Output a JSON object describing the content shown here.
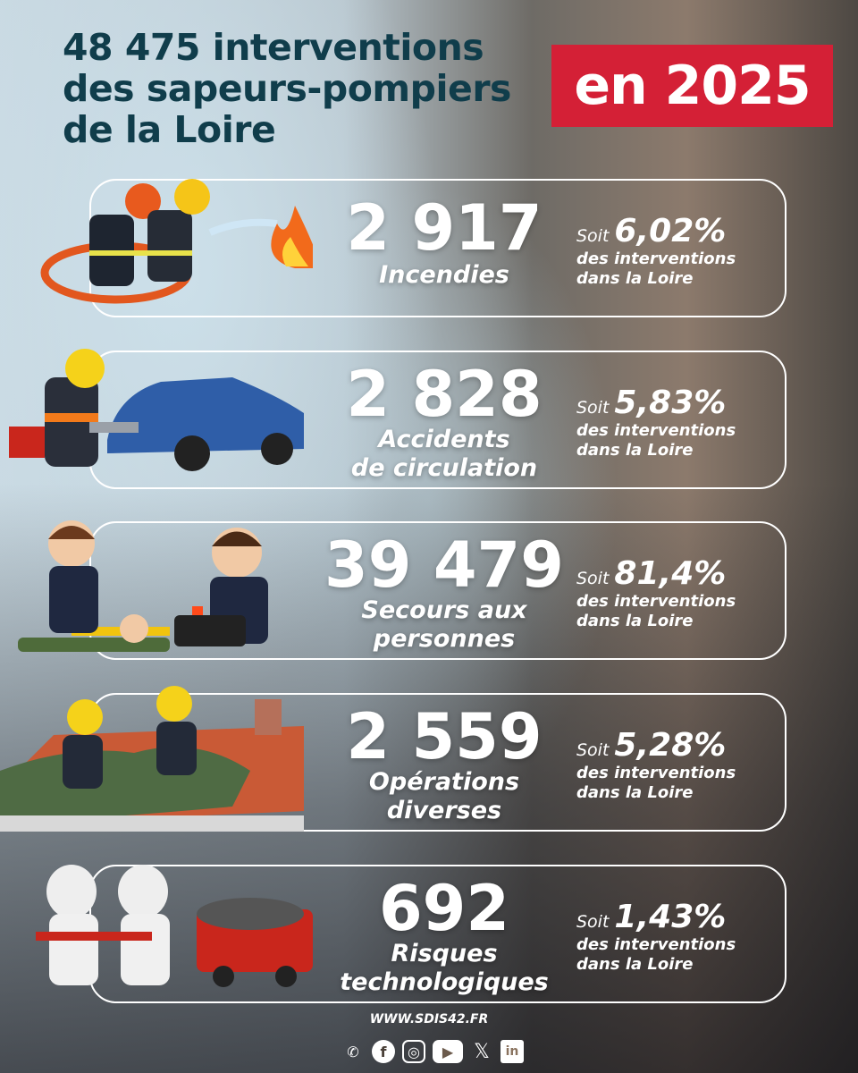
{
  "header": {
    "title_lines": [
      "48 475 interventions",
      "des sapeurs-pompiers",
      "de la Loire"
    ],
    "badge": "en 2025"
  },
  "colors": {
    "title": "#103d4b",
    "badge": "#d42036"
  },
  "cards": [
    {
      "number": "2 917",
      "label_lines": [
        "Incendies"
      ],
      "soit": "Soit",
      "percent": "6,02%",
      "line1": "des interventions",
      "line2": "dans la Loire",
      "illustration": "firefighters-hose-fire"
    },
    {
      "number": "2 828",
      "label_lines": [
        "Accidents",
        "de circulation"
      ],
      "soit": "Soit",
      "percent": "5,83%",
      "line1": "des interventions",
      "line2": "dans la Loire",
      "illustration": "firefighter-car-crash"
    },
    {
      "number": "39 479",
      "label_lines": [
        "Secours aux",
        "personnes"
      ],
      "soit": "Soit",
      "percent": "81,4%",
      "line1": "des interventions",
      "line2": "dans la Loire",
      "illustration": "rescuers-victim"
    },
    {
      "number": "2 559",
      "label_lines": [
        "Opérations",
        "diverses"
      ],
      "soit": "Soit",
      "percent": "5,28%",
      "line1": "des interventions",
      "line2": "dans la Loire",
      "illustration": "firefighters-roof-tarp"
    },
    {
      "number": "692",
      "label_lines": [
        "Risques",
        "technologiques"
      ],
      "soit": "Soit",
      "percent": "1,43%",
      "line1": "des interventions",
      "line2": "dans la Loire",
      "illustration": "hazmat-team-truck"
    }
  ],
  "footer": {
    "url": "WWW.SDIS42.FR",
    "social": [
      "whatsapp-icon",
      "facebook-icon",
      "instagram-icon",
      "youtube-icon",
      "x-icon",
      "linkedin-icon"
    ]
  }
}
